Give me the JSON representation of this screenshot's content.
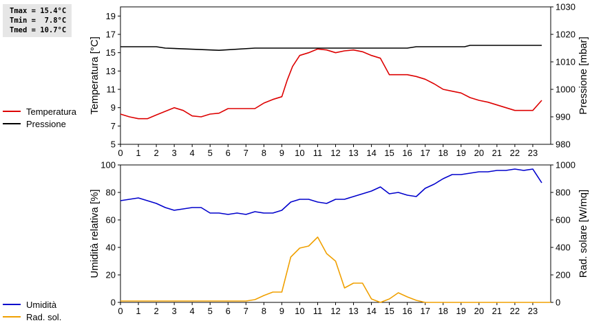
{
  "stats": {
    "tmax": "Tmax = 15.4°C",
    "tmin": "Tmin =  7.8°C",
    "tmed": "Tmed = 10.7°C"
  },
  "chart_data": [
    {
      "type": "line",
      "ylabel_left": "Temperatura [°C]",
      "ylabel_right": "Pressione [mbar]",
      "ylim_left": [
        5,
        20
      ],
      "ylim_right": [
        980,
        1030
      ],
      "yticks_left": [
        "5",
        "7",
        "9",
        "11",
        "13",
        "15",
        "17",
        "19"
      ],
      "yticks_right": [
        "980",
        "990",
        "1000",
        "1010",
        "1020",
        "1030"
      ],
      "xlim": [
        0,
        24
      ],
      "xticks": [
        "0",
        "1",
        "2",
        "3",
        "4",
        "5",
        "6",
        "7",
        "8",
        "9",
        "10",
        "11",
        "12",
        "13",
        "14",
        "15",
        "16",
        "17",
        "18",
        "19",
        "20",
        "21",
        "22",
        "23"
      ],
      "series": [
        {
          "name": "Temperatura",
          "axis": "left",
          "color": "#dd0000",
          "x": [
            0,
            0.5,
            1,
            1.5,
            2,
            2.5,
            3,
            3.5,
            4,
            4.5,
            5,
            5.5,
            6,
            6.5,
            7,
            7.5,
            8,
            8.5,
            9,
            9.3,
            9.6,
            10,
            10.5,
            11,
            11.5,
            12,
            12.5,
            13,
            13.5,
            14,
            14.5,
            15,
            15.5,
            16,
            16.5,
            17,
            17.5,
            18,
            18.5,
            19,
            19.5,
            20,
            20.5,
            21,
            21.5,
            22,
            22.5,
            23,
            23.5
          ],
          "y": [
            8.3,
            8.0,
            7.8,
            7.8,
            8.2,
            8.6,
            9.0,
            8.7,
            8.1,
            8.0,
            8.3,
            8.4,
            8.9,
            8.9,
            8.9,
            8.9,
            9.5,
            9.9,
            10.2,
            12.0,
            13.5,
            14.7,
            15.0,
            15.4,
            15.3,
            15.0,
            15.2,
            15.3,
            15.1,
            14.7,
            14.4,
            12.6,
            12.6,
            12.6,
            12.4,
            12.1,
            11.6,
            11.0,
            10.8,
            10.6,
            10.1,
            9.8,
            9.6,
            9.3,
            9.0,
            8.7,
            8.7,
            8.7,
            9.8
          ]
        },
        {
          "name": "Pressione",
          "axis": "right",
          "color": "#000000",
          "x": [
            0,
            2,
            2.5,
            5.5,
            7.5,
            9,
            10,
            16,
            16.5,
            19.2,
            19.5,
            23.5
          ],
          "y": [
            1015.5,
            1015.5,
            1015,
            1014.2,
            1015,
            1015,
            1015,
            1015,
            1015.5,
            1015.5,
            1016,
            1016
          ]
        }
      ]
    },
    {
      "type": "line",
      "ylabel_left": "Umidità relativa [%]",
      "ylabel_right": "Rad. solare [W/mq]",
      "ylim_left": [
        0,
        100
      ],
      "ylim_right": [
        0,
        1000
      ],
      "yticks_left": [
        "0",
        "20",
        "40",
        "60",
        "80",
        "100"
      ],
      "yticks_right": [
        "0",
        "200",
        "400",
        "600",
        "800",
        "1000"
      ],
      "xlim": [
        0,
        24
      ],
      "xticks": [
        "0",
        "1",
        "2",
        "3",
        "4",
        "5",
        "6",
        "7",
        "8",
        "9",
        "10",
        "11",
        "12",
        "13",
        "14",
        "15",
        "16",
        "17",
        "18",
        "19",
        "20",
        "21",
        "22",
        "23"
      ],
      "series": [
        {
          "name": "Umidità",
          "axis": "left",
          "color": "#0000cc",
          "x": [
            0,
            0.5,
            1,
            1.5,
            2,
            2.5,
            3,
            3.5,
            4,
            4.5,
            5,
            5.5,
            6,
            6.5,
            7,
            7.5,
            8,
            8.5,
            9,
            9.5,
            10,
            10.5,
            11,
            11.5,
            12,
            12.5,
            13,
            13.5,
            14,
            14.5,
            15,
            15.5,
            16,
            16.5,
            17,
            17.5,
            18,
            18.5,
            19,
            19.5,
            20,
            20.5,
            21,
            21.5,
            22,
            22.5,
            23,
            23.5
          ],
          "y": [
            74,
            75,
            76,
            74,
            72,
            69,
            67,
            68,
            69,
            69,
            65,
            65,
            64,
            65,
            64,
            66,
            65,
            65,
            67,
            73,
            75,
            75,
            73,
            72,
            75,
            75,
            77,
            79,
            81,
            84,
            79,
            80,
            78,
            77,
            83,
            86,
            90,
            93,
            93,
            94,
            95,
            95,
            96,
            96,
            97,
            96,
            97,
            87
          ]
        },
        {
          "name": "Rad. sol.",
          "axis": "right",
          "color": "#f0a000",
          "x": [
            0,
            7,
            7.5,
            8,
            8.5,
            9,
            9.5,
            10,
            10.5,
            11,
            11.5,
            12,
            12.5,
            13,
            13.5,
            14,
            14.5,
            15,
            15.5,
            16,
            16.5,
            17,
            24
          ],
          "y": [
            10,
            10,
            20,
            50,
            75,
            75,
            330,
            395,
            410,
            475,
            355,
            300,
            105,
            140,
            140,
            25,
            0,
            25,
            70,
            40,
            15,
            0,
            0
          ]
        }
      ]
    }
  ]
}
